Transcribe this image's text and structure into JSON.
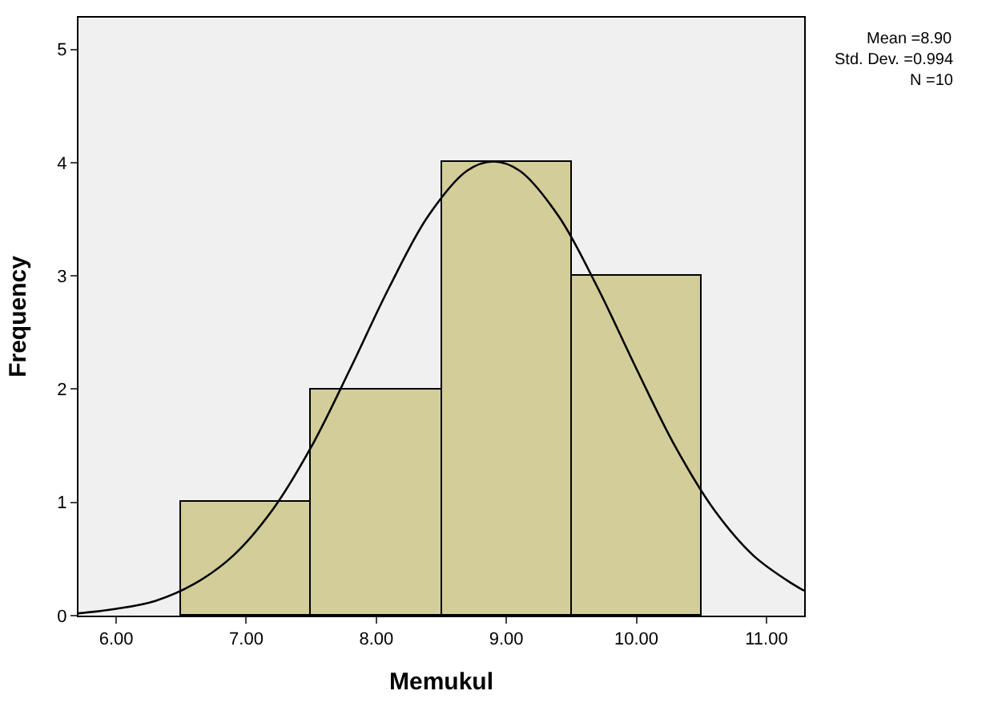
{
  "chart_data": {
    "type": "histogram",
    "xlabel": "Memukul",
    "ylabel": "Frequency",
    "bins": [
      6.5,
      7.5,
      8.5,
      9.5,
      10.5
    ],
    "values": [
      1,
      2,
      4,
      3
    ],
    "color": "#d3ce99",
    "series": [
      {
        "type": "line",
        "color": "#000000",
        "x": [
          5.71,
          6.0,
          6.3,
          6.6,
          6.9,
          7.2,
          7.5,
          7.8,
          8.1,
          8.4,
          8.7,
          8.9,
          9.1,
          9.4,
          9.7,
          10.0,
          10.3,
          10.6,
          10.9,
          11.2,
          11.29
        ],
        "values": [
          0.02,
          0.06,
          0.13,
          0.28,
          0.53,
          0.93,
          1.49,
          2.18,
          2.9,
          3.53,
          3.93,
          4.01,
          3.93,
          3.53,
          2.9,
          2.18,
          1.49,
          0.93,
          0.53,
          0.28,
          0.22
        ]
      }
    ],
    "xlim": [
      5.71,
      11.29
    ],
    "xticks": [
      {
        "value": 6,
        "label": "6.00"
      },
      {
        "value": 7,
        "label": "7.00"
      },
      {
        "value": 8,
        "label": "8.00"
      },
      {
        "value": 9,
        "label": "9.00"
      },
      {
        "value": 10,
        "label": "10.00"
      },
      {
        "value": 11,
        "label": "11.00"
      }
    ],
    "ylim": [
      0,
      5.28
    ],
    "yticks": [
      0,
      1,
      2,
      3,
      4,
      5
    ],
    "annotations": [
      "Mean =8.90",
      "Std. Dev. =0.994",
      "N =10"
    ],
    "grid": false,
    "marker": "none",
    "line_style": "solid"
  }
}
